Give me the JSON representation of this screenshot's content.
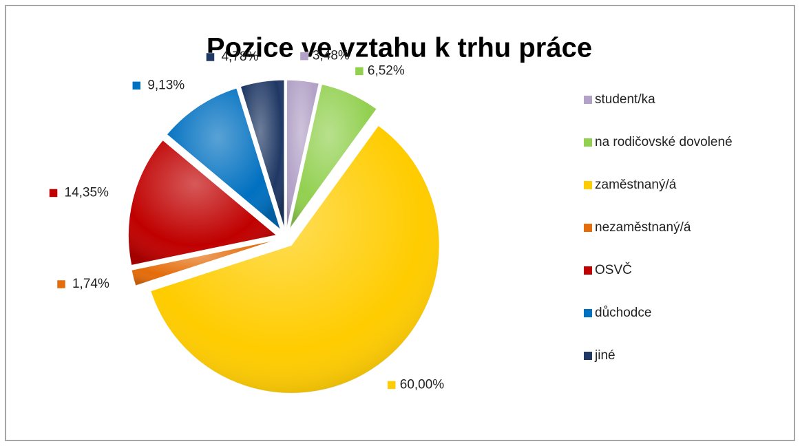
{
  "chart_data": {
    "type": "pie",
    "title": "Pozice ve vztahu k trhu práce",
    "categories": [
      "student/ka",
      "na rodičovské dovolené",
      "zaměstnaný/á",
      "nezaměstnaný/á",
      "OSVČ",
      "důchodce",
      "jiné"
    ],
    "values": [
      3.48,
      6.52,
      60.0,
      1.74,
      14.35,
      9.13,
      4.78
    ],
    "value_labels": [
      "3,48%",
      "6,52%",
      "60,00%",
      "1,74%",
      "14,35%",
      "9,13%",
      "4,78%"
    ],
    "colors": [
      "#b3a2c7",
      "#92d050",
      "#ffcc00",
      "#e46c0a",
      "#c00000",
      "#0070c0",
      "#1f3864"
    ],
    "legend": "right"
  }
}
